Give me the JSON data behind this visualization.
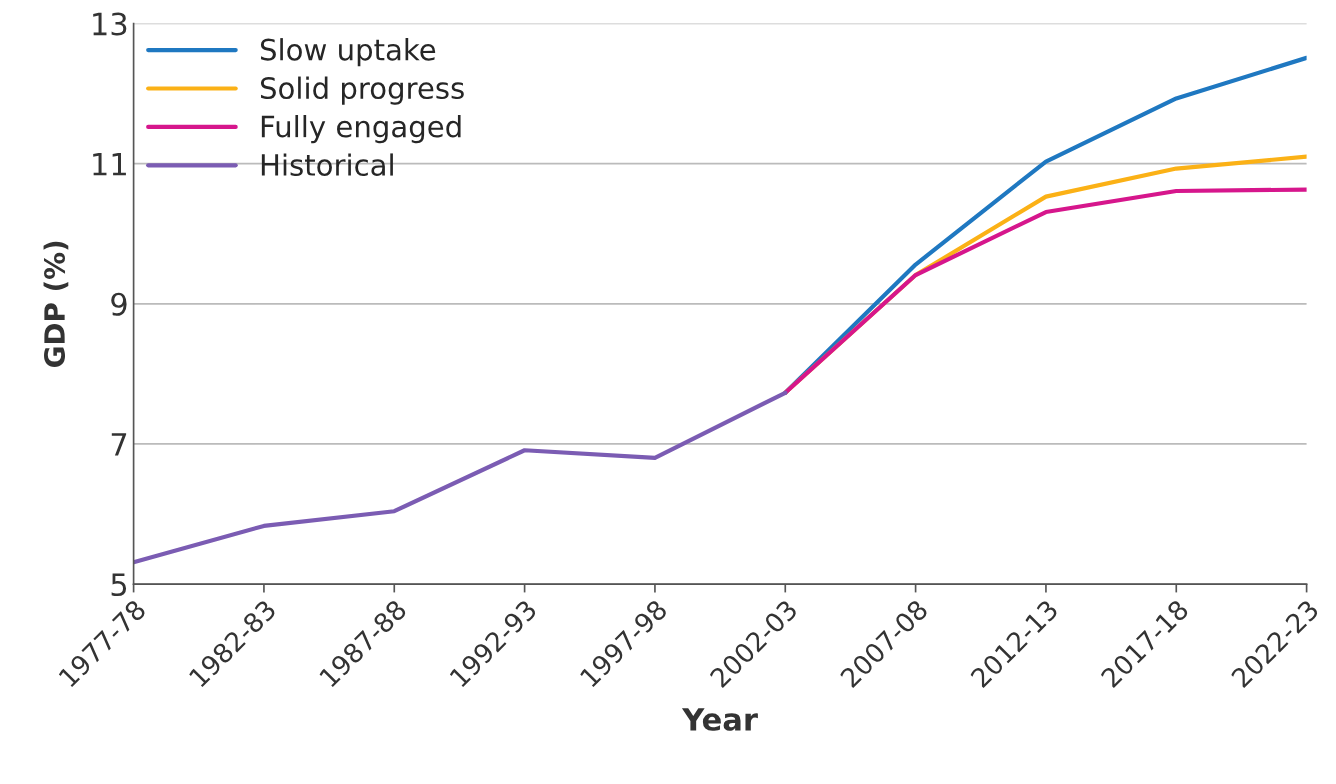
{
  "chart_data": {
    "type": "line",
    "xlabel": "Year",
    "ylabel": "GDP (%)",
    "categories": [
      "1977-78",
      "1982-83",
      "1987-88",
      "1992-93",
      "1997-98",
      "2002-03",
      "2007-08",
      "2012-13",
      "2017-18",
      "2022-23"
    ],
    "series": [
      {
        "name": "Slow uptake",
        "color": "#1f78c1",
        "values": [
          null,
          null,
          null,
          null,
          null,
          7.73,
          9.56,
          11.03,
          11.93,
          12.51
        ]
      },
      {
        "name": "Solid progress",
        "color": "#fbb116",
        "values": [
          null,
          null,
          null,
          null,
          null,
          7.73,
          9.41,
          10.53,
          10.93,
          11.1
        ]
      },
      {
        "name": "Fully engaged",
        "color": "#d6168c",
        "values": [
          null,
          null,
          null,
          null,
          null,
          7.73,
          9.41,
          10.31,
          10.61,
          10.63
        ]
      },
      {
        "name": "Historical",
        "color": "#7b5cb3",
        "values": [
          5.31,
          5.83,
          6.04,
          6.91,
          6.8,
          7.73,
          null,
          null,
          null,
          null
        ]
      }
    ],
    "ylim": [
      5,
      13
    ],
    "yticks": [
      5,
      7,
      9,
      11,
      13
    ],
    "grid": "y",
    "legend": "top left",
    "marker": "none",
    "line_style": "solid"
  }
}
